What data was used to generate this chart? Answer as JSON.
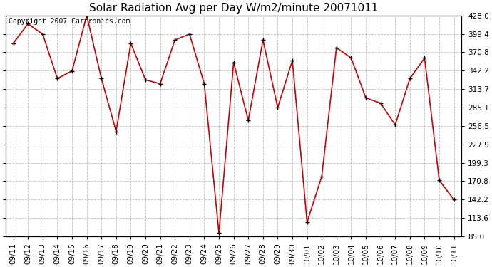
{
  "title": "Solar Radiation Avg per Day W/m2/minute 20071011",
  "copyright_text": "Copyright 2007 Cartronics.com",
  "labels": [
    "09/11",
    "09/12",
    "09/13",
    "09/14",
    "09/15",
    "09/16",
    "09/17",
    "09/18",
    "09/19",
    "09/20",
    "09/21",
    "09/22",
    "09/23",
    "09/24",
    "09/25",
    "09/26",
    "09/27",
    "09/28",
    "09/29",
    "09/30",
    "10/01",
    "10/02",
    "10/03",
    "10/04",
    "10/05",
    "10/06",
    "10/07",
    "10/08",
    "10/09",
    "10/10",
    "10/11"
  ],
  "values": [
    385.0,
    415.0,
    399.0,
    330.0,
    342.0,
    428.0,
    330.0,
    248.0,
    385.0,
    328.0,
    322.0,
    390.0,
    399.0,
    322.0,
    90.0,
    355.0,
    265.0,
    390.0,
    285.0,
    358.0,
    107.0,
    178.0,
    378.0,
    362.0,
    300.0,
    292.0,
    258.0,
    330.0,
    362.0,
    172.0,
    142.0
  ],
  "line_color": "#cc0000",
  "marker_color": "#000000",
  "bg_color": "#ffffff",
  "grid_color": "#b0b0b0",
  "y_ticks": [
    85.0,
    113.6,
    142.2,
    170.8,
    199.3,
    227.9,
    256.5,
    285.1,
    313.7,
    342.2,
    370.8,
    399.4,
    428.0
  ],
  "ylim": [
    85.0,
    428.0
  ],
  "title_fontsize": 11,
  "tick_fontsize": 7.5,
  "copyright_fontsize": 7
}
